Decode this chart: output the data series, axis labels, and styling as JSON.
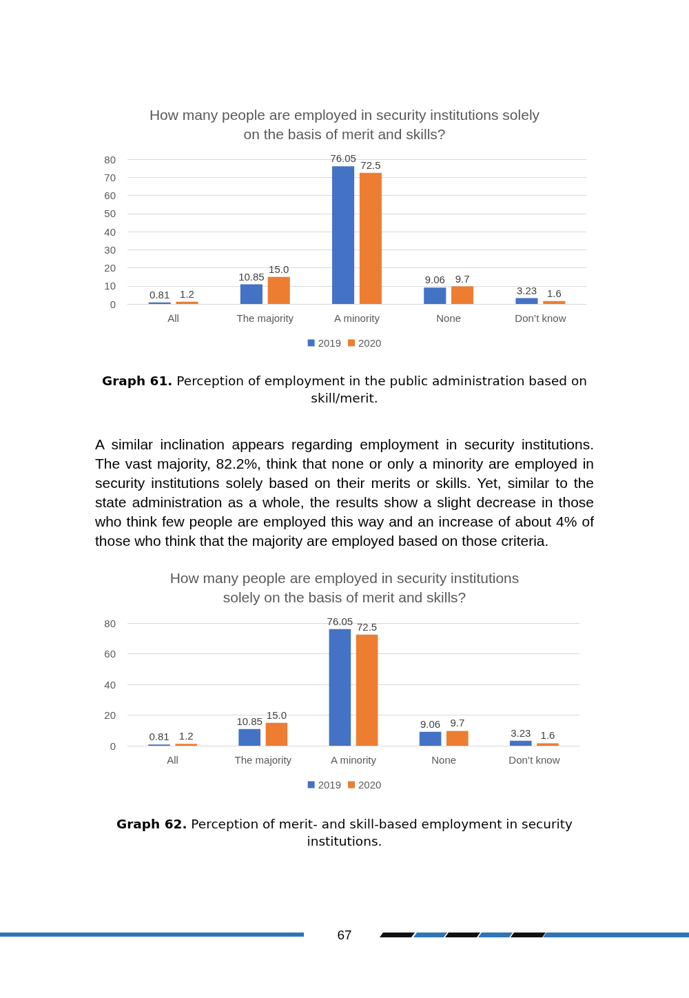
{
  "chart_data": [
    {
      "type": "bar",
      "title": "How many people are employed in security institutions solely on the basis of merit and skills?",
      "categories": [
        "All",
        "The majority",
        "A minority",
        "None",
        "Don’t know"
      ],
      "series": [
        {
          "name": "2019",
          "color": "#4472c4",
          "values": [
            0.81,
            10.85,
            76.05,
            9.06,
            3.23
          ],
          "value_labels": [
            "0.81",
            "10.85",
            "76.05",
            "9.06",
            "3.23"
          ]
        },
        {
          "name": "2020",
          "color": "#ed7d31",
          "values": [
            1.2,
            15.0,
            72.5,
            9.7,
            1.6
          ],
          "value_labels": [
            "1.2",
            "15.0",
            "72.5",
            "9.7",
            "1.6"
          ]
        }
      ],
      "ylim": [
        0,
        80
      ],
      "yticks": [
        0,
        10,
        20,
        30,
        40,
        50,
        60,
        70,
        80
      ],
      "grid": "y",
      "legend": "bottom",
      "annotations": [
        "Graph 61.",
        "Perception of employment in the public administration based on skill/merit.",
        "A similar inclination appears regarding employment in security institutions. The vast majority, 82.2%, think that none or only a minority are employed in security institutions solely based on their merits or skills. Yet, similar to the state administration as a whole, the results show a slight decrease in those who think few people are employed this way and an increase of about 4% of those who think that the majority are employed based on those criteria."
      ]
    },
    {
      "type": "bar",
      "title": "How many people are employed in security institutions solely on the basis of merit and skills?",
      "categories": [
        "All",
        "The majority",
        "A minority",
        "None",
        "Don’t know"
      ],
      "series": [
        {
          "name": "2019",
          "color": "#4472c4",
          "values": [
            0.81,
            10.85,
            76.05,
            9.06,
            3.23
          ],
          "value_labels": [
            "0.81",
            "10.85",
            "76.05",
            "9.06",
            "3.23"
          ]
        },
        {
          "name": "2020",
          "color": "#ed7d31",
          "values": [
            1.2,
            15.0,
            72.5,
            9.7,
            1.6
          ],
          "value_labels": [
            "1.2",
            "15.0",
            "72.5",
            "9.7",
            "1.6"
          ]
        }
      ],
      "ylim": [
        0,
        80
      ],
      "yticks": [
        0,
        20,
        40,
        60,
        80
      ],
      "grid": "y",
      "legend": "bottom",
      "annotations": [
        "Graph 62.",
        "Perception of merit- and skill-based employment in security institutions.",
        "67"
      ]
    }
  ]
}
